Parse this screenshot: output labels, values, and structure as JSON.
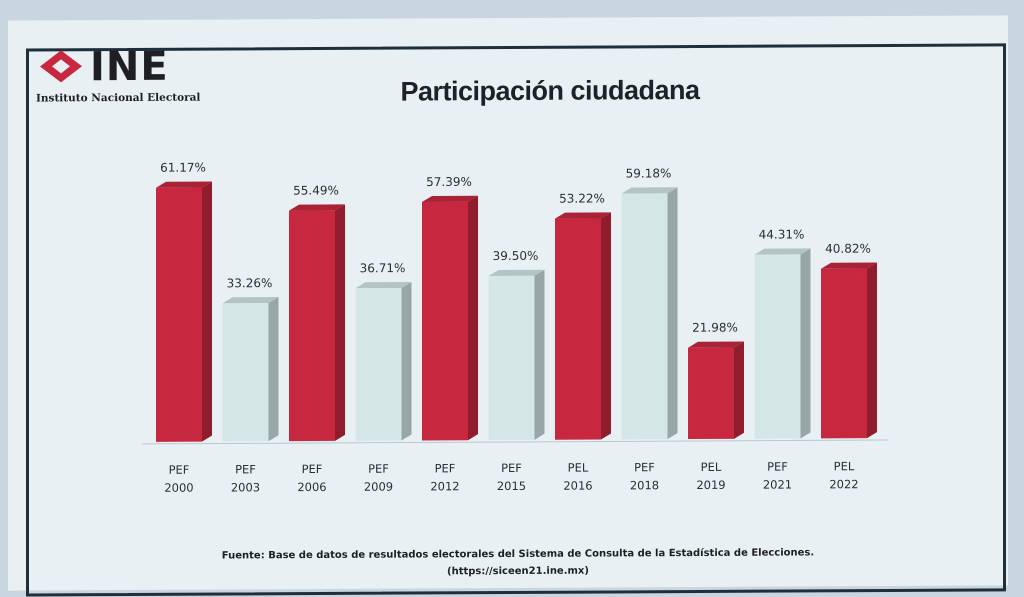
{
  "logo": {
    "name": "INE",
    "subtitle": "Instituto Nacional Electoral",
    "accent": "#c8283f"
  },
  "title": "Participación ciudadana",
  "chart_data": {
    "type": "bar",
    "title": "Participación ciudadana",
    "categories": [
      [
        "PEF",
        "2000"
      ],
      [
        "PEF",
        "2003"
      ],
      [
        "PEF",
        "2006"
      ],
      [
        "PEF",
        "2009"
      ],
      [
        "PEF",
        "2012"
      ],
      [
        "PEF",
        "2015"
      ],
      [
        "PEL",
        "2016"
      ],
      [
        "PEF",
        "2018"
      ],
      [
        "PEL",
        "2019"
      ],
      [
        "PEF",
        "2021"
      ],
      [
        "PEL",
        "2022"
      ]
    ],
    "values": [
      61.17,
      33.26,
      55.49,
      36.71,
      57.39,
      39.5,
      53.22,
      59.18,
      21.98,
      44.31,
      40.82
    ],
    "value_labels": [
      "61.17%",
      "33.26%",
      "55.49%",
      "36.71%",
      "57.39%",
      "39.50%",
      "53.22%",
      "59.18%",
      "21.98%",
      "44.31%",
      "40.82%"
    ],
    "bar_colors": [
      "#c8283f",
      "#d4e7e6",
      "#c8283f",
      "#d4e7e6",
      "#c8283f",
      "#d4e7e6",
      "#c8283f",
      "#d4e7e6",
      "#c8283f",
      "#d4e7e6",
      "#c8283f"
    ],
    "ylim": [
      0,
      65
    ],
    "grid": false,
    "legend": "none",
    "xlabel": "",
    "ylabel": ""
  },
  "source": {
    "line1": "Fuente: Base de datos de resultados electorales del Sistema de Consulta de la Estadística de Elecciones.",
    "line2": "(https://siceen21.ine.mx)"
  }
}
